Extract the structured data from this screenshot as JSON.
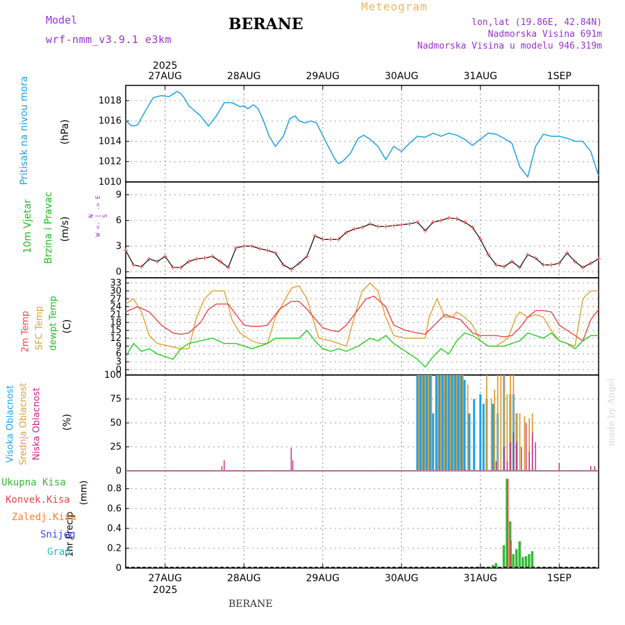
{
  "header": {
    "model_label": "Model",
    "model_value": "wrf-nmm_v3.9.1  e3km",
    "station_title": "BERANE",
    "product": "Meteogram",
    "lonlat": "lon,lat (19.86E, 42.84N)",
    "elevation": "Nadmorska Visina 691m",
    "model_elevation": "Nadmorska Visina u modelu 946.319m",
    "bottom_station": "BERANE",
    "watermark": "made by Angel"
  },
  "colors": {
    "pressure": "#1ea0e6",
    "wind_label": "#22bb22",
    "temp2m": "#ee4444",
    "sfc": "#e0a030",
    "dew": "#22cc22",
    "high_cloud": "#1ea0e6",
    "mid_cloud": "#e0a030",
    "low_cloud": "#cc2288",
    "total_precip": "#33bb33",
    "conv_precip": "#ee4444",
    "frozen_precip": "#ff7f2a",
    "snow": "#4444ee",
    "hail": "#22bbbb",
    "header_purple": "#9933cc",
    "header_orange": "#e8b860"
  },
  "chart_data": [
    {
      "type": "line",
      "name": "pressure",
      "title": "Pritisak na nivou mora",
      "ylabel": "(hPa)",
      "year_label": "2025",
      "x_tick_labels": [
        "27AUG",
        "28AUG",
        "29AUG",
        "30AUG",
        "31AUG",
        "1SEP"
      ],
      "x_ticks_day": [
        0,
        1,
        2,
        3,
        4,
        5
      ],
      "xlim_day": [
        -0.5,
        5.5
      ],
      "y_ticks": [
        1010,
        1012,
        1014,
        1016,
        1018
      ],
      "ylim": [
        1010,
        1019.5
      ],
      "series": [
        {
          "name": "Pritisak na nivou mora",
          "x": [
            -0.5,
            -0.42,
            -0.35,
            -0.25,
            -0.15,
            -0.05,
            0.05,
            0.15,
            0.2,
            0.25,
            0.3,
            0.45,
            0.55,
            0.65,
            0.75,
            0.85,
            0.95,
            1.0,
            1.05,
            1.12,
            1.18,
            1.25,
            1.32,
            1.4,
            1.5,
            1.58,
            1.65,
            1.7,
            1.78,
            1.85,
            1.92,
            2.05,
            2.15,
            2.2,
            2.25,
            2.35,
            2.45,
            2.52,
            2.6,
            2.7,
            2.8,
            2.9,
            3.0,
            3.1,
            3.2,
            3.3,
            3.4,
            3.5,
            3.6,
            3.7,
            3.8,
            3.9,
            4.0,
            4.1,
            4.2,
            4.3,
            4.4,
            4.5,
            4.6,
            4.7,
            4.8,
            4.9,
            5.0,
            5.1,
            5.2,
            5.3,
            5.4,
            5.5
          ],
          "values": [
            1016.0,
            1015.5,
            1015.6,
            1017.0,
            1018.3,
            1018.5,
            1018.4,
            1018.9,
            1018.7,
            1018.2,
            1017.5,
            1016.5,
            1015.5,
            1016.5,
            1017.8,
            1017.8,
            1017.4,
            1017.5,
            1017.2,
            1017.6,
            1017.2,
            1016.0,
            1014.5,
            1013.5,
            1014.5,
            1016.2,
            1016.5,
            1016.0,
            1015.8,
            1016.0,
            1015.8,
            1013.8,
            1012.3,
            1011.8,
            1012.0,
            1012.8,
            1014.3,
            1014.6,
            1014.2,
            1013.5,
            1012.2,
            1013.5,
            1013.0,
            1013.8,
            1014.5,
            1014.4,
            1014.8,
            1014.5,
            1014.8,
            1014.6,
            1014.2,
            1013.6,
            1014.2,
            1014.8,
            1014.7,
            1014.3,
            1013.8,
            1011.5,
            1010.5,
            1013.5,
            1014.7,
            1014.5,
            1014.5,
            1014.3,
            1014.0,
            1014.0,
            1013.0,
            1010.6
          ]
        }
      ]
    },
    {
      "type": "line",
      "name": "wind",
      "title": "10m Vjetar",
      "subtitle": "Brzina i Pravac",
      "ylabel": "(m/s)",
      "legend_text": [
        "N",
        "W <- | -> E",
        "S"
      ],
      "y_ticks": [
        0,
        3,
        6,
        9
      ],
      "ylim": [
        -0.7,
        10.5
      ],
      "series": [
        {
          "name": "Vjetar (10m)",
          "x": [
            -0.5,
            -0.4,
            -0.3,
            -0.2,
            -0.1,
            0.0,
            0.1,
            0.2,
            0.3,
            0.4,
            0.5,
            0.6,
            0.7,
            0.8,
            0.9,
            1.0,
            1.1,
            1.2,
            1.3,
            1.4,
            1.5,
            1.6,
            1.7,
            1.8,
            1.9,
            2.0,
            2.1,
            2.2,
            2.3,
            2.4,
            2.5,
            2.6,
            2.7,
            2.8,
            2.9,
            3.0,
            3.1,
            3.2,
            3.3,
            3.4,
            3.5,
            3.6,
            3.7,
            3.8,
            3.9,
            4.0,
            4.1,
            4.2,
            4.3,
            4.4,
            4.5,
            4.6,
            4.7,
            4.8,
            4.9,
            5.0,
            5.1,
            5.2,
            5.3,
            5.4,
            5.5
          ],
          "values": [
            2.5,
            0.8,
            0.6,
            1.5,
            1.2,
            1.8,
            0.5,
            0.5,
            1.2,
            1.5,
            1.6,
            1.8,
            1.2,
            0.5,
            2.8,
            3.0,
            3.0,
            2.7,
            2.5,
            2.2,
            0.8,
            0.3,
            1.0,
            1.8,
            4.2,
            3.8,
            3.8,
            3.8,
            4.6,
            5.0,
            5.2,
            5.6,
            5.3,
            5.3,
            5.4,
            5.5,
            5.6,
            5.8,
            4.8,
            5.8,
            6.0,
            6.3,
            6.2,
            5.8,
            5.2,
            3.8,
            2.0,
            0.8,
            0.6,
            1.2,
            0.5,
            2.0,
            1.6,
            0.8,
            0.8,
            1.0,
            2.2,
            1.2,
            0.5,
            1.0,
            1.5
          ]
        }
      ]
    },
    {
      "type": "line",
      "name": "temperature",
      "title": "2m Temp",
      "subtitle": "SFC Temp",
      "subtitle2": "dewpt Temp",
      "ylabel": "(C)",
      "y_ticks": [
        0,
        3,
        6,
        9,
        12,
        15,
        18,
        21,
        24,
        27,
        30,
        33
      ],
      "ylim": [
        -2,
        35
      ],
      "series": [
        {
          "name": "2m Temp",
          "x": [
            -0.5,
            -0.35,
            -0.2,
            -0.05,
            0.1,
            0.2,
            0.3,
            0.45,
            0.55,
            0.65,
            0.8,
            0.9,
            1.0,
            1.1,
            1.2,
            1.3,
            1.45,
            1.6,
            1.7,
            1.8,
            2.0,
            2.1,
            2.2,
            2.3,
            2.45,
            2.55,
            2.65,
            2.8,
            2.9,
            3.05,
            3.2,
            3.3,
            3.45,
            3.55,
            3.65,
            3.75,
            3.9,
            4.0,
            4.1,
            4.2,
            4.3,
            4.4,
            4.5,
            4.6,
            4.7,
            4.8,
            4.9,
            5.0,
            5.1,
            5.2,
            5.3,
            5.4,
            5.5
          ],
          "values": [
            22,
            24,
            22,
            17,
            14,
            13.5,
            14,
            18,
            23,
            25,
            25,
            21,
            17,
            16.5,
            16.5,
            17,
            23,
            26,
            26,
            23,
            16,
            15,
            14.5,
            17,
            23,
            27,
            28,
            24,
            17,
            15,
            14,
            13.5,
            18,
            21,
            20,
            19,
            14,
            13,
            13,
            13,
            12.5,
            13,
            16,
            20,
            22.5,
            22.5,
            22,
            17,
            15,
            13,
            11,
            19,
            23
          ]
        },
        {
          "name": "SFC Temp",
          "x": [
            -0.5,
            -0.4,
            -0.3,
            -0.2,
            -0.1,
            0.05,
            0.2,
            0.3,
            0.4,
            0.5,
            0.6,
            0.75,
            0.85,
            0.95,
            1.1,
            1.2,
            1.3,
            1.4,
            1.6,
            1.7,
            1.8,
            1.95,
            2.1,
            2.2,
            2.3,
            2.4,
            2.5,
            2.6,
            2.7,
            2.8,
            2.9,
            3.05,
            3.2,
            3.3,
            3.35,
            3.45,
            3.55,
            3.65,
            3.7,
            3.8,
            3.9,
            4.0,
            4.1,
            4.2,
            4.3,
            4.35,
            4.45,
            4.5,
            4.6,
            4.7,
            4.8,
            4.9,
            5.0,
            5.1,
            5.2,
            5.3,
            5.4,
            5.5
          ],
          "values": [
            25,
            27,
            22,
            13,
            10,
            9,
            8,
            8,
            20,
            27,
            30,
            30,
            19,
            14,
            11,
            10,
            10,
            20,
            31,
            32,
            27,
            12,
            11,
            10,
            9,
            20,
            30,
            33,
            30,
            20,
            13,
            12,
            12,
            12,
            20,
            27,
            20,
            20,
            22,
            20,
            17,
            11,
            9,
            9,
            11,
            12,
            20,
            22,
            20,
            21,
            20,
            15,
            11,
            10,
            9,
            27,
            30,
            30
          ]
        },
        {
          "name": "dewpt Temp",
          "x": [
            -0.5,
            -0.4,
            -0.3,
            -0.2,
            -0.1,
            0.0,
            0.1,
            0.2,
            0.3,
            0.45,
            0.6,
            0.75,
            0.9,
            1.0,
            1.1,
            1.2,
            1.3,
            1.4,
            1.5,
            1.6,
            1.7,
            1.8,
            1.9,
            2.0,
            2.1,
            2.2,
            2.3,
            2.45,
            2.6,
            2.7,
            2.8,
            2.9,
            3.0,
            3.1,
            3.2,
            3.3,
            3.4,
            3.5,
            3.6,
            3.7,
            3.8,
            3.9,
            4.0,
            4.1,
            4.2,
            4.3,
            4.4,
            4.5,
            4.6,
            4.7,
            4.8,
            4.9,
            5.0,
            5.1,
            5.2,
            5.3,
            5.4,
            5.5
          ],
          "values": [
            5,
            10,
            7,
            8,
            6,
            5,
            4,
            8,
            10,
            11,
            12,
            10,
            10,
            9,
            8,
            9,
            10,
            12,
            12,
            12,
            12,
            15,
            11,
            8,
            7,
            8,
            7,
            9,
            12,
            11,
            13,
            10,
            8,
            6,
            4,
            1,
            5,
            8,
            6,
            11,
            14,
            13,
            11,
            9,
            9,
            9,
            10,
            11,
            14,
            13,
            12,
            14,
            11,
            10,
            8,
            11,
            13,
            13
          ]
        }
      ]
    },
    {
      "type": "bar",
      "name": "clouds",
      "title": "Visoka Oblacnost",
      "subtitle": "Srednja Oblacnost",
      "subtitle2": "Niska Oblacnost",
      "ylabel": "(%)",
      "y_ticks": [
        0,
        25,
        50,
        75,
        100
      ],
      "ylim": [
        0,
        100
      ],
      "series": [
        {
          "name": "Visoka Oblacnost",
          "x": [
            3.2,
            3.24,
            3.28,
            3.32,
            3.36,
            3.4,
            3.44,
            3.48,
            3.52,
            3.56,
            3.6,
            3.64,
            3.68,
            3.72,
            3.76,
            3.8,
            3.86,
            3.92,
            4.0,
            4.04,
            4.08,
            4.16,
            4.22,
            4.3,
            4.38,
            4.42,
            4.46
          ],
          "values": [
            100,
            100,
            100,
            100,
            100,
            60,
            100,
            100,
            100,
            100,
            100,
            100,
            100,
            100,
            100,
            95,
            60,
            75,
            80,
            70,
            75,
            70,
            60,
            100,
            80,
            80,
            60
          ]
        },
        {
          "name": "Srednja Oblacnost",
          "x": [
            3.22,
            3.26,
            3.3,
            3.34,
            3.38,
            3.46,
            3.5,
            3.54,
            3.58,
            3.62,
            3.66,
            3.7,
            3.74,
            3.78,
            3.84,
            4.08,
            4.14,
            4.18,
            4.22,
            4.26,
            4.3,
            4.34,
            4.38,
            4.42,
            4.46,
            4.5,
            4.56,
            4.62,
            4.66
          ],
          "values": [
            100,
            100,
            100,
            100,
            100,
            100,
            100,
            100,
            100,
            100,
            100,
            100,
            100,
            100,
            90,
            100,
            75,
            85,
            100,
            100,
            100,
            80,
            100,
            100,
            60,
            60,
            57,
            55,
            60
          ]
        },
        {
          "name": "Niska Oblacnost",
          "x": [
            0.72,
            0.75,
            1.6,
            1.62,
            3.8,
            4.2,
            4.3,
            4.34,
            4.38,
            4.42,
            4.46,
            4.52,
            4.58,
            4.62,
            4.66,
            4.7,
            5.0,
            5.4,
            5.45
          ],
          "values": [
            5,
            11,
            24,
            11,
            2,
            10,
            25,
            10,
            30,
            40,
            30,
            25,
            50,
            20,
            40,
            30,
            8,
            5,
            5
          ]
        }
      ]
    },
    {
      "type": "bar",
      "name": "precip",
      "title": "1hr Precip",
      "ylabel": "(mm)",
      "legend": [
        "Ukupna  Kisa",
        "Konvek.Kisa",
        "Zaledj.Kisa",
        "Snijeg",
        "Grad"
      ],
      "x_tick_labels": [
        "27AUG",
        "28AUG",
        "29AUG",
        "30AUG",
        "31AUG",
        "1SEP"
      ],
      "year_label": "2025",
      "y_ticks": [
        0,
        0.2,
        0.4,
        0.6,
        0.8
      ],
      "ylim": [
        0,
        0.98
      ],
      "series": [
        {
          "name": "Ukupna Kisa",
          "x": [
            4.12,
            4.16,
            4.2,
            4.3,
            4.34,
            4.38,
            4.42,
            4.46,
            4.5,
            4.54,
            4.58,
            4.62,
            4.66,
            4.7
          ],
          "values": [
            0.01,
            0.03,
            0.05,
            0.23,
            0.9,
            0.47,
            0.14,
            0.19,
            0.27,
            0.11,
            0.12,
            0.14,
            0.17,
            0.01
          ]
        },
        {
          "name": "Konvek.Kisa",
          "x": [
            4.16,
            4.34,
            4.38
          ],
          "values": [
            0.02,
            0.9,
            0.28
          ]
        }
      ]
    }
  ]
}
